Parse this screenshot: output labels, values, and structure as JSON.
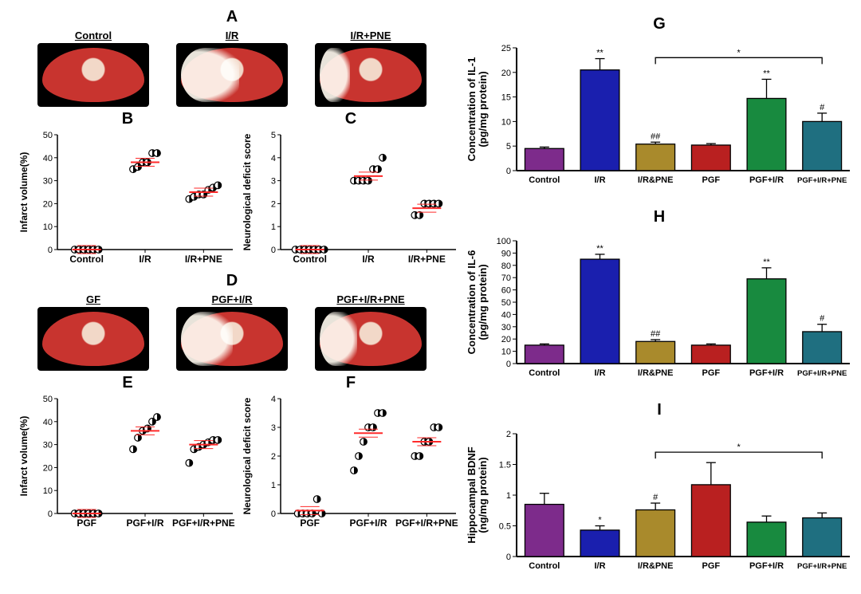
{
  "colors": {
    "marker_fill": "#000000",
    "marker_half": "#ffffff",
    "mean_line": "#ff2a2a",
    "axis": "#000000",
    "bar_palette": {
      "control": "#7d2b8b",
      "ir": "#1a1fae",
      "ir_pne": "#a98a2c",
      "pgf": "#b92020",
      "pgf_ir": "#188a3f",
      "pgf_ir_pne": "#1f6f80"
    },
    "brain_red": "#c8342f",
    "brain_light": "#f2d8c8",
    "brain_white": "#f5f0e6"
  },
  "panelA": {
    "label": "A",
    "items": [
      {
        "name": "Control",
        "infarct_pct": 0
      },
      {
        "name": "I/R",
        "infarct_pct": 35
      },
      {
        "name": "I/R+PNE",
        "infarct_pct": 12
      }
    ]
  },
  "panelB": {
    "label": "B",
    "ylabel": "Infarct volume(%)",
    "ylim": [
      0,
      50
    ],
    "ytick_step": 10,
    "groups": [
      "Control",
      "I/R",
      "I/R+PNE"
    ],
    "points": {
      "Control": [
        0,
        0,
        0,
        0,
        0,
        0
      ],
      "I/R": [
        35,
        36,
        38,
        38,
        42,
        42
      ],
      "I/R+PNE": [
        22,
        23,
        24,
        24,
        26,
        27,
        28
      ]
    },
    "means": {
      "Control": 0,
      "I/R": 38,
      "I/R+PNE": 25
    }
  },
  "panelC": {
    "label": "C",
    "ylabel": "Neurological deficit score",
    "ylim": [
      0,
      5
    ],
    "ytick_step": 1,
    "groups": [
      "Control",
      "I/R",
      "I/R+PNE"
    ],
    "points": {
      "Control": [
        0,
        0,
        0,
        0,
        0,
        0,
        0
      ],
      "I/R": [
        3,
        3,
        3,
        3,
        3.5,
        3.5,
        4
      ],
      "I/R+PNE": [
        1.5,
        1.5,
        2,
        2,
        2,
        2
      ]
    },
    "means": {
      "Control": 0,
      "I/R": 3.2,
      "I/R+PNE": 1.8
    }
  },
  "panelD": {
    "label": "D",
    "items": [
      {
        "name": "GF",
        "infarct_pct": 0
      },
      {
        "name": "PGF+I/R",
        "infarct_pct": 30
      },
      {
        "name": "PGF+I/R+PNE",
        "infarct_pct": 18
      }
    ]
  },
  "panelE": {
    "label": "E",
    "ylabel": "Infarct volume(%)",
    "ylim": [
      0,
      50
    ],
    "ytick_step": 10,
    "groups": [
      "PGF",
      "PGF+I/R",
      "PGF+I/R+PNE"
    ],
    "points": {
      "PGF": [
        0,
        0,
        0,
        0,
        0,
        0
      ],
      "PGF+I/R": [
        28,
        33,
        36,
        37,
        40,
        42
      ],
      "PGF+I/R+PNE": [
        22,
        28,
        29,
        30,
        31,
        32,
        32
      ]
    },
    "means": {
      "PGF": 0,
      "PGF+I/R": 36,
      "PGF+I/R+PNE": 30
    }
  },
  "panelF": {
    "label": "F",
    "ylabel": "Neurological deficit score",
    "ylim": [
      0,
      4
    ],
    "ytick_step": 1,
    "groups": [
      "PGF",
      "PGF+I/R",
      "PGF+I/R+PNE"
    ],
    "points": {
      "PGF": [
        0,
        0,
        0,
        0,
        0.5,
        0
      ],
      "PGF+I/R": [
        1.5,
        2,
        2.5,
        3,
        3,
        3.5,
        3.5
      ],
      "PGF+I/R+PNE": [
        2,
        2,
        2.5,
        2.5,
        3,
        3
      ]
    },
    "means": {
      "PGF": 0.1,
      "PGF+I/R": 2.8,
      "PGF+I/R+PNE": 2.5
    }
  },
  "panelG": {
    "label": "G",
    "ylabel": "Concentration of IL-1\n(pg/mg protein)",
    "ylim": [
      0,
      25
    ],
    "ytick_step": 5,
    "categories": [
      "Control",
      "I/R",
      "I/R&PNE",
      "PGF",
      "PGF+I/R",
      "PGF+I/R+PNE"
    ],
    "values": [
      4.5,
      20.5,
      5.4,
      5.2,
      14.7,
      10.0
    ],
    "errors": [
      0.3,
      2.3,
      0.4,
      0.3,
      3.9,
      1.7
    ],
    "sig": [
      "",
      "**",
      "##",
      "",
      "**",
      "#"
    ],
    "bracket": {
      "from": 2,
      "to": 5,
      "label": "*",
      "y": 23
    }
  },
  "panelH": {
    "label": "H",
    "ylabel": "Concentration of IL-6\n(pg/mg protein)",
    "ylim": [
      0,
      100
    ],
    "ytick_step": 10,
    "categories": [
      "Control",
      "I/R",
      "I/R&PNE",
      "PGF",
      "PGF+I/R",
      "PGF+I/R+PNE"
    ],
    "values": [
      15,
      85,
      18,
      15,
      69,
      26
    ],
    "errors": [
      1,
      4,
      1.5,
      1,
      9,
      6
    ],
    "sig": [
      "",
      "**",
      "##",
      "",
      "**",
      "#"
    ]
  },
  "panelI": {
    "label": "I",
    "ylabel": "Hippocampal BDNF\n(ng/mg protein)",
    "ylim": [
      0,
      2.0
    ],
    "ytick_step": 0.5,
    "categories": [
      "Control",
      "I/R",
      "I/R&PNE",
      "PGF",
      "PGF+I/R",
      "PGF+I/R+PNE"
    ],
    "values": [
      0.85,
      0.43,
      0.76,
      1.17,
      0.56,
      0.63
    ],
    "errors": [
      0.18,
      0.07,
      0.11,
      0.36,
      0.1,
      0.08
    ],
    "sig": [
      "",
      "*",
      "#",
      "",
      "",
      ""
    ],
    "bracket": {
      "from": 2,
      "to": 5,
      "label": "*",
      "y": 1.7
    }
  },
  "bar_color_keys": [
    "control",
    "ir",
    "ir_pne",
    "pgf",
    "pgf_ir",
    "pgf_ir_pne"
  ]
}
